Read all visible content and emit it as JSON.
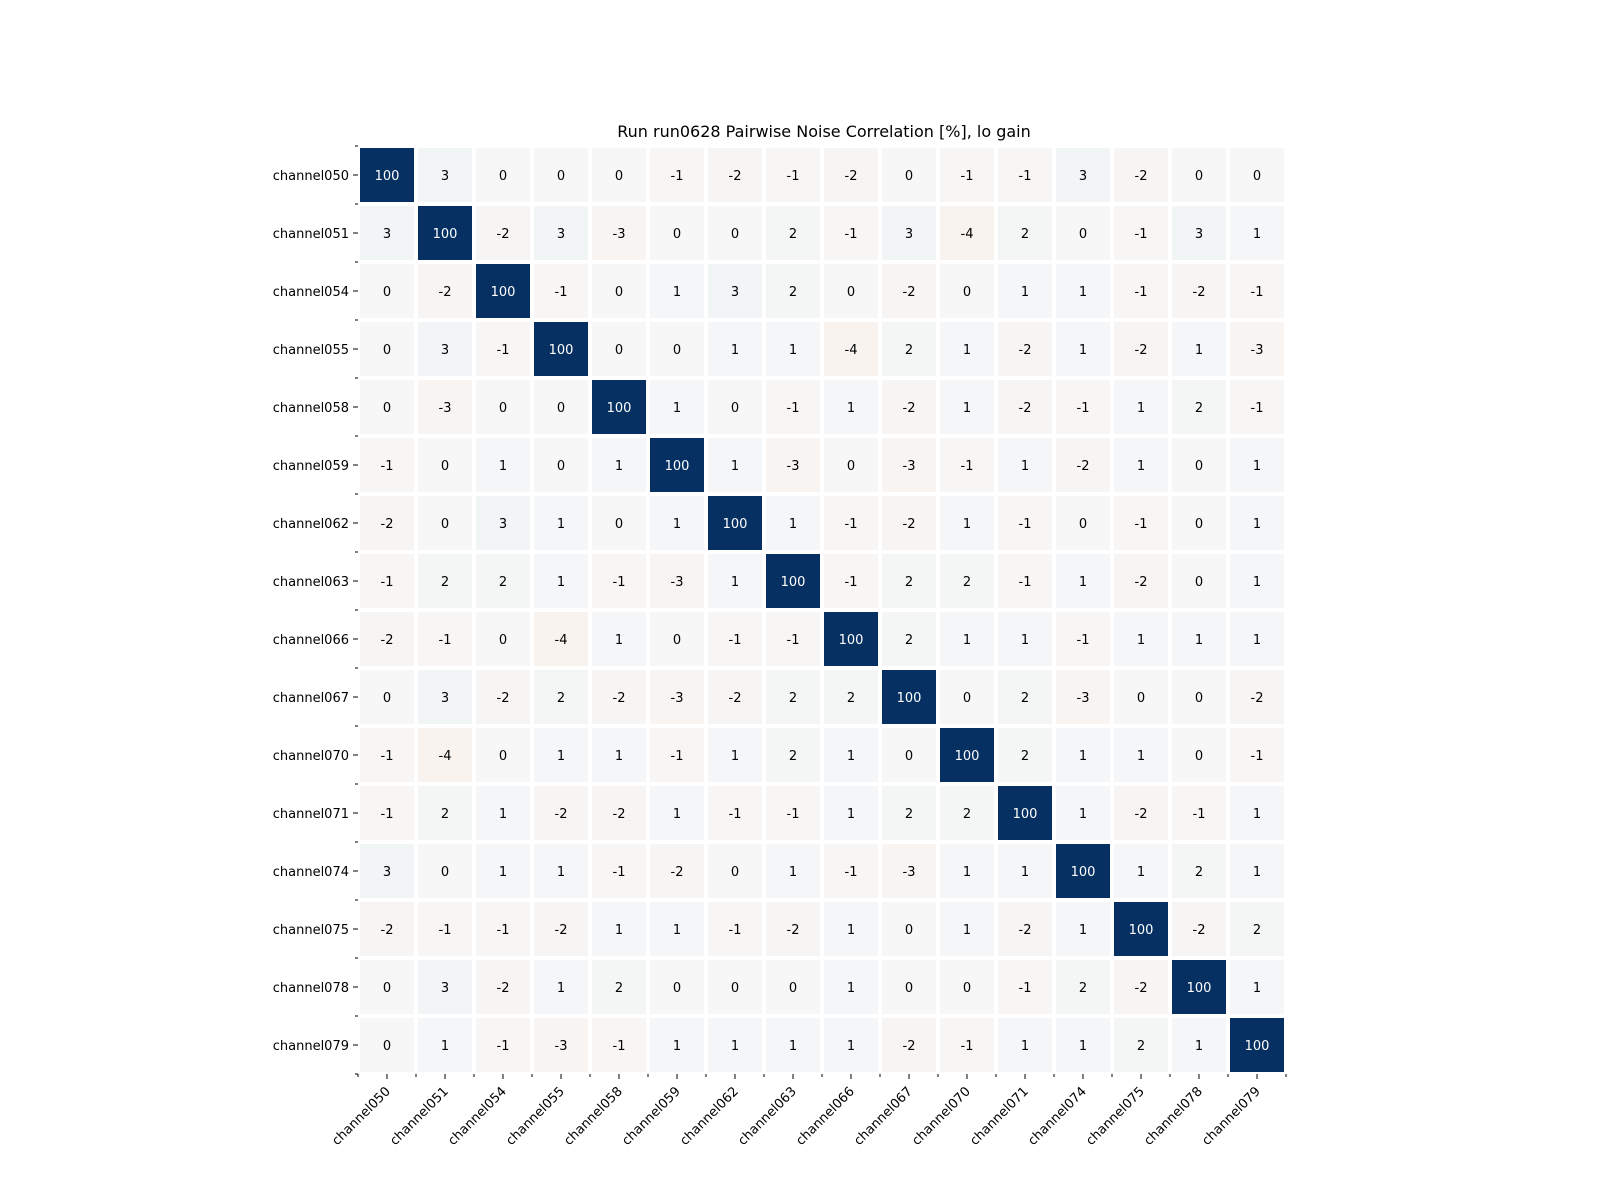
{
  "chart_data": {
    "type": "heatmap",
    "title": "Run run0628 Pairwise Noise Correlation [%], lo gain",
    "xlabel": "",
    "ylabel": "",
    "x_categories": [
      "channel050",
      "channel051",
      "channel054",
      "channel055",
      "channel058",
      "channel059",
      "channel062",
      "channel063",
      "channel066",
      "channel067",
      "channel070",
      "channel071",
      "channel074",
      "channel075",
      "channel078",
      "channel079"
    ],
    "y_categories": [
      "channel050",
      "channel051",
      "channel054",
      "channel055",
      "channel058",
      "channel059",
      "channel062",
      "channel063",
      "channel066",
      "channel067",
      "channel070",
      "channel071",
      "channel074",
      "channel075",
      "channel078",
      "channel079"
    ],
    "values": [
      [
        100,
        3,
        0,
        0,
        0,
        -1,
        -2,
        -1,
        -2,
        0,
        -1,
        -1,
        3,
        -2,
        0,
        0
      ],
      [
        3,
        100,
        -2,
        3,
        -3,
        0,
        0,
        2,
        -1,
        3,
        -4,
        2,
        0,
        -1,
        3,
        1
      ],
      [
        0,
        -2,
        100,
        -1,
        0,
        1,
        3,
        2,
        0,
        -2,
        0,
        1,
        1,
        -1,
        -2,
        -1
      ],
      [
        0,
        3,
        -1,
        100,
        0,
        0,
        1,
        1,
        -4,
        2,
        1,
        -2,
        1,
        -2,
        1,
        -3
      ],
      [
        0,
        -3,
        0,
        0,
        100,
        1,
        0,
        -1,
        1,
        -2,
        1,
        -2,
        -1,
        1,
        2,
        -1
      ],
      [
        -1,
        0,
        1,
        0,
        1,
        100,
        1,
        -3,
        0,
        -3,
        -1,
        1,
        -2,
        1,
        0,
        1
      ],
      [
        -2,
        0,
        3,
        1,
        0,
        1,
        100,
        1,
        -1,
        -2,
        1,
        -1,
        0,
        -1,
        0,
        1
      ],
      [
        -1,
        2,
        2,
        1,
        -1,
        -3,
        1,
        100,
        -1,
        2,
        2,
        -1,
        1,
        -2,
        0,
        1
      ],
      [
        -2,
        -1,
        0,
        -4,
        1,
        0,
        -1,
        -1,
        100,
        2,
        1,
        1,
        -1,
        1,
        1,
        1
      ],
      [
        0,
        3,
        -2,
        2,
        -2,
        -3,
        -2,
        2,
        2,
        100,
        0,
        2,
        -3,
        0,
        0,
        -2
      ],
      [
        -1,
        -4,
        0,
        1,
        1,
        -1,
        1,
        2,
        1,
        0,
        100,
        2,
        1,
        1,
        0,
        -1
      ],
      [
        -1,
        2,
        1,
        -2,
        -2,
        1,
        -1,
        -1,
        1,
        2,
        2,
        100,
        1,
        -2,
        -1,
        1
      ],
      [
        3,
        0,
        1,
        1,
        -1,
        -2,
        0,
        1,
        -1,
        -3,
        1,
        1,
        100,
        1,
        2,
        1
      ],
      [
        -2,
        -1,
        -1,
        -2,
        1,
        1,
        -1,
        -2,
        1,
        0,
        1,
        -2,
        1,
        100,
        -2,
        2
      ],
      [
        0,
        3,
        -2,
        1,
        2,
        0,
        0,
        0,
        1,
        0,
        0,
        -1,
        2,
        -2,
        100,
        1
      ],
      [
        0,
        1,
        -1,
        -3,
        -1,
        1,
        1,
        1,
        1,
        -2,
        -1,
        1,
        1,
        2,
        1,
        100
      ]
    ],
    "colormap": "diverging blue-white-red",
    "vmin": -100,
    "vmax": 100,
    "grid": false,
    "legend": "none",
    "colors": {
      "positive_max": "#053061",
      "neutral": "#f7f7f7",
      "negative_max": "#67001f",
      "cell_border": "#ffffff",
      "text_dark": "#000000",
      "text_light": "#ffffff"
    }
  }
}
